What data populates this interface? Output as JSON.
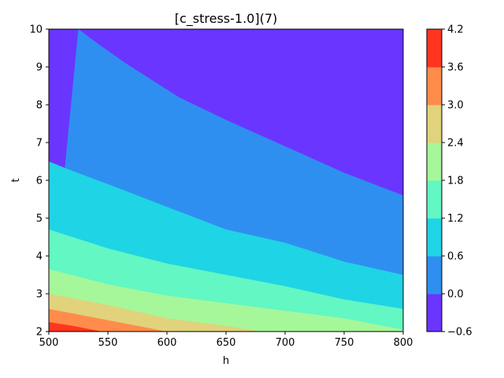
{
  "chart_data": {
    "type": "contourf",
    "title": "[c_stress-1.0](7)",
    "xlabel": "h",
    "ylabel": "t",
    "xlim": [
      500,
      800
    ],
    "ylim": [
      2,
      10
    ],
    "x_ticks": [
      500,
      550,
      600,
      650,
      700,
      750,
      800
    ],
    "y_ticks": [
      2,
      3,
      4,
      5,
      6,
      7,
      8,
      9,
      10
    ],
    "grid": false,
    "levels": [
      -0.6,
      0.0,
      0.6,
      1.2,
      1.8,
      2.4,
      3.0,
      3.6,
      4.2
    ],
    "colorbar_tick_labels": [
      "4.2",
      "3.6",
      "3.0",
      "2.4",
      "1.8",
      "1.2",
      "0.6",
      "0.0",
      "−0.6"
    ],
    "level_colors": [
      "#6a35ff",
      "#2f8ff0",
      "#1fd4e4",
      "#62f7c3",
      "#a5f79a",
      "#e1d27c",
      "#ff8c4a",
      "#ff3520"
    ],
    "contour_boundaries": [
      {
        "level": 0.0,
        "points": [
          [
            525,
            10
          ],
          [
            540,
            9.65
          ],
          [
            565,
            9.1
          ],
          [
            610,
            8.2
          ],
          [
            650,
            7.6
          ],
          [
            700,
            6.9
          ],
          [
            750,
            6.2
          ],
          [
            800,
            5.6
          ]
        ]
      },
      {
        "level": 0.6,
        "points": [
          [
            500,
            6.5
          ],
          [
            520,
            6.25
          ],
          [
            550,
            5.9
          ],
          [
            600,
            5.3
          ],
          [
            650,
            4.7
          ],
          [
            700,
            4.35
          ],
          [
            750,
            3.85
          ],
          [
            800,
            3.5
          ]
        ]
      },
      {
        "level": 1.2,
        "points": [
          [
            500,
            4.7
          ],
          [
            550,
            4.2
          ],
          [
            600,
            3.8
          ],
          [
            650,
            3.5
          ],
          [
            700,
            3.2
          ],
          [
            750,
            2.85
          ],
          [
            800,
            2.6
          ]
        ]
      },
      {
        "level": 1.8,
        "points": [
          [
            500,
            3.65
          ],
          [
            550,
            3.25
          ],
          [
            600,
            2.95
          ],
          [
            650,
            2.75
          ],
          [
            700,
            2.55
          ],
          [
            750,
            2.35
          ],
          [
            800,
            2.05
          ]
        ]
      },
      {
        "level": 2.4,
        "points": [
          [
            500,
            3.0
          ],
          [
            550,
            2.7
          ],
          [
            600,
            2.35
          ],
          [
            650,
            2.15
          ],
          [
            680,
            2.0
          ]
        ]
      },
      {
        "level": 3.0,
        "points": [
          [
            500,
            2.6
          ],
          [
            550,
            2.3
          ],
          [
            600,
            2.0
          ]
        ]
      },
      {
        "level": 3.6,
        "points": [
          [
            500,
            2.25
          ],
          [
            520,
            2.15
          ],
          [
            545,
            2.0
          ]
        ]
      }
    ]
  }
}
